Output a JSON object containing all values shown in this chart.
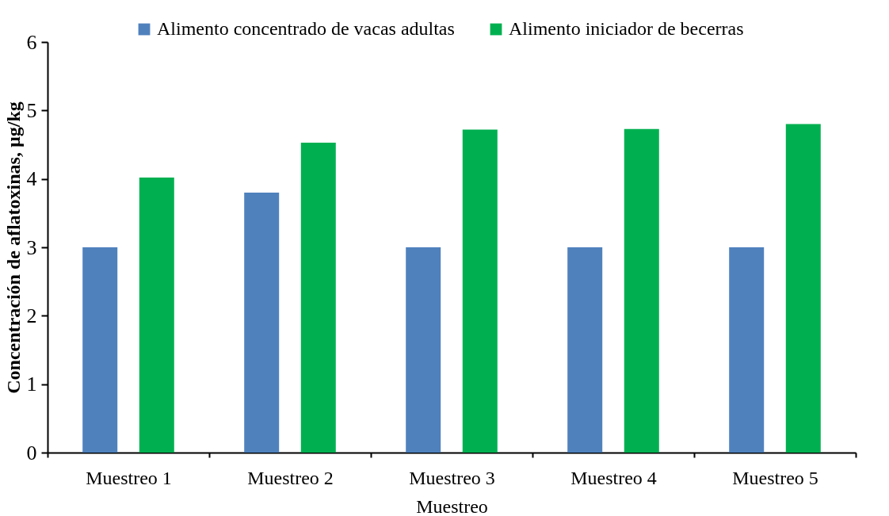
{
  "chart_data": {
    "type": "bar",
    "xlabel": "Muestreo",
    "ylabel": "Concentración de aflatoxinas, µg/kg",
    "categories": [
      "Muestreo 1",
      "Muestreo 2",
      "Muestreo 3",
      "Muestreo 4",
      "Muestreo 5"
    ],
    "series": [
      {
        "name": "Alimento concentrado de vacas adultas",
        "color": "#4f81bd",
        "values": [
          3,
          3.8,
          3,
          3,
          3
        ]
      },
      {
        "name": "Alimento iniciador de becerras",
        "color": "#00b050",
        "values": [
          4.02,
          4.53,
          4.72,
          4.73,
          4.8
        ]
      }
    ],
    "ylim": [
      0,
      6
    ],
    "yticks": [
      0,
      1,
      2,
      3,
      4,
      5,
      6
    ],
    "grid": false,
    "legend": "top right"
  }
}
